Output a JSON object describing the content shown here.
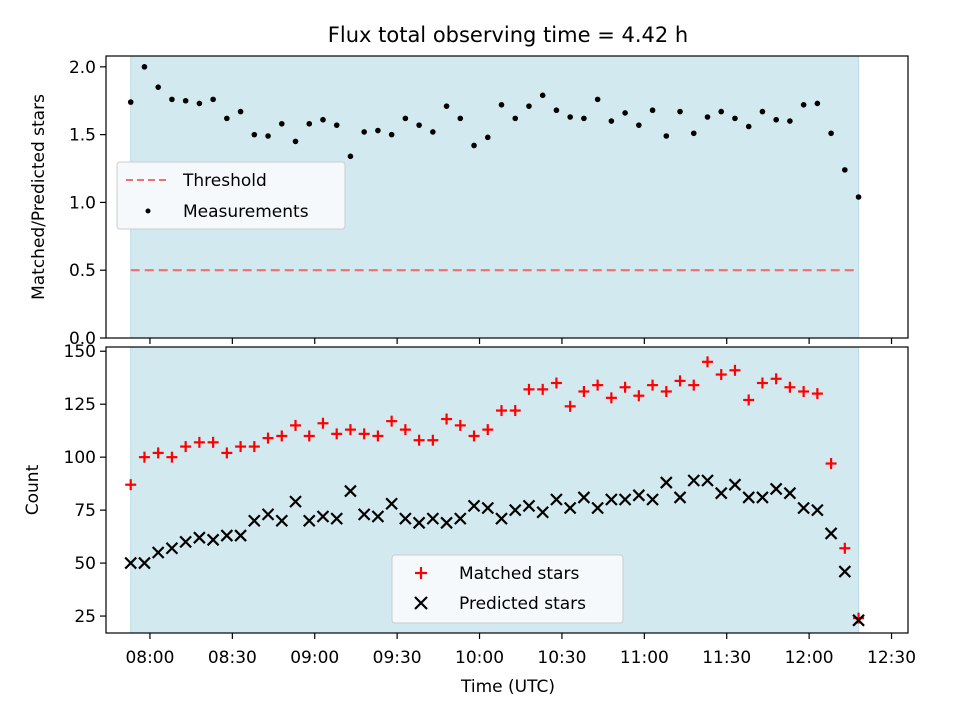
{
  "title": "Flux total observing time = 4.42 h",
  "colors": {
    "observing_span": "#d3e9f0",
    "threshold": "#f07070",
    "measurements": "#000000",
    "matched": "#ff0000",
    "predicted": "#000000"
  },
  "chart_data": [
    {
      "type": "scatter",
      "panel": "top",
      "xlabel": "",
      "ylabel": "Matched/Predicted stars",
      "ylim": [
        0,
        2.08
      ],
      "yticks": [
        "0.0",
        "0.5",
        "1.0",
        "1.5",
        "2.0"
      ],
      "xlim": [
        "07:44",
        "12:36"
      ],
      "shaded_span": [
        "07:53",
        "12:18"
      ],
      "grid": false,
      "legend": {
        "placement": "center-left",
        "entries": [
          "Threshold",
          "Measurements"
        ]
      },
      "series": [
        {
          "name": "Threshold",
          "style": "dashed-line",
          "x": [
            "07:53",
            "12:18"
          ],
          "y": [
            0.5,
            0.5
          ]
        },
        {
          "name": "Measurements",
          "style": "dots",
          "x": [
            "07:53",
            "07:58",
            "08:03",
            "08:08",
            "08:13",
            "08:18",
            "08:23",
            "08:28",
            "08:33",
            "08:38",
            "08:43",
            "08:48",
            "08:53",
            "08:58",
            "09:03",
            "09:08",
            "09:13",
            "09:18",
            "09:23",
            "09:28",
            "09:33",
            "09:38",
            "09:43",
            "09:48",
            "09:53",
            "09:58",
            "10:03",
            "10:08",
            "10:13",
            "10:18",
            "10:23",
            "10:28",
            "10:33",
            "10:38",
            "10:43",
            "10:48",
            "10:53",
            "10:58",
            "11:03",
            "11:08",
            "11:13",
            "11:18",
            "11:23",
            "11:28",
            "11:33",
            "11:38",
            "11:43",
            "11:48",
            "11:53",
            "11:58",
            "12:03",
            "12:08",
            "12:13",
            "12:18"
          ],
          "y": [
            1.74,
            2.0,
            1.85,
            1.76,
            1.75,
            1.73,
            1.76,
            1.62,
            1.67,
            1.5,
            1.49,
            1.58,
            1.45,
            1.58,
            1.61,
            1.57,
            1.34,
            1.52,
            1.53,
            1.5,
            1.62,
            1.57,
            1.52,
            1.71,
            1.62,
            1.42,
            1.48,
            1.72,
            1.62,
            1.71,
            1.79,
            1.68,
            1.63,
            1.62,
            1.76,
            1.6,
            1.66,
            1.57,
            1.68,
            1.49,
            1.67,
            1.51,
            1.63,
            1.67,
            1.62,
            1.56,
            1.67,
            1.61,
            1.6,
            1.72,
            1.73,
            1.51,
            1.24,
            1.04
          ]
        }
      ]
    },
    {
      "type": "scatter",
      "panel": "bottom",
      "xlabel": "Time (UTC)",
      "ylabel": "Count",
      "ylim": [
        17,
        152
      ],
      "yticks": [
        "25",
        "50",
        "75",
        "100",
        "125",
        "150"
      ],
      "xlim": [
        "07:44",
        "12:36"
      ],
      "xticks": [
        "08:00",
        "08:30",
        "09:00",
        "09:30",
        "10:00",
        "10:30",
        "11:00",
        "11:30",
        "12:00",
        "12:30"
      ],
      "shaded_span": [
        "07:53",
        "12:18"
      ],
      "grid": false,
      "legend": {
        "placement": "bottom-center",
        "entries": [
          "Matched stars",
          "Predicted stars"
        ]
      },
      "series": [
        {
          "name": "Matched stars",
          "marker": "plus",
          "x": [
            "07:53",
            "07:58",
            "08:03",
            "08:08",
            "08:13",
            "08:18",
            "08:23",
            "08:28",
            "08:33",
            "08:38",
            "08:43",
            "08:48",
            "08:53",
            "08:58",
            "09:03",
            "09:08",
            "09:13",
            "09:18",
            "09:23",
            "09:28",
            "09:33",
            "09:38",
            "09:43",
            "09:48",
            "09:53",
            "09:58",
            "10:03",
            "10:08",
            "10:13",
            "10:18",
            "10:23",
            "10:28",
            "10:33",
            "10:38",
            "10:43",
            "10:48",
            "10:53",
            "10:58",
            "11:03",
            "11:08",
            "11:13",
            "11:18",
            "11:23",
            "11:28",
            "11:33",
            "11:38",
            "11:43",
            "11:48",
            "11:53",
            "11:58",
            "12:03",
            "12:08",
            "12:13",
            "12:18"
          ],
          "y": [
            87,
            100,
            102,
            100,
            105,
            107,
            107,
            102,
            105,
            105,
            109,
            110,
            115,
            110,
            116,
            111,
            113,
            111,
            110,
            117,
            113,
            108,
            108,
            118,
            115,
            110,
            113,
            122,
            122,
            132,
            132,
            135,
            124,
            131,
            134,
            128,
            133,
            129,
            134,
            131,
            136,
            134,
            145,
            139,
            141,
            127,
            135,
            137,
            133,
            131,
            130,
            97,
            57,
            24
          ]
        },
        {
          "name": "Predicted stars",
          "marker": "x",
          "x": [
            "07:53",
            "07:58",
            "08:03",
            "08:08",
            "08:13",
            "08:18",
            "08:23",
            "08:28",
            "08:33",
            "08:38",
            "08:43",
            "08:48",
            "08:53",
            "08:58",
            "09:03",
            "09:08",
            "09:13",
            "09:18",
            "09:23",
            "09:28",
            "09:33",
            "09:38",
            "09:43",
            "09:48",
            "09:53",
            "09:58",
            "10:03",
            "10:08",
            "10:13",
            "10:18",
            "10:23",
            "10:28",
            "10:33",
            "10:38",
            "10:43",
            "10:48",
            "10:53",
            "10:58",
            "11:03",
            "11:08",
            "11:13",
            "11:18",
            "11:23",
            "11:28",
            "11:33",
            "11:38",
            "11:43",
            "11:48",
            "11:53",
            "11:58",
            "12:03",
            "12:08",
            "12:13",
            "12:18"
          ],
          "y": [
            50,
            50,
            55,
            57,
            60,
            62,
            61,
            63,
            63,
            70,
            73,
            70,
            79,
            70,
            72,
            71,
            84,
            73,
            72,
            78,
            71,
            69,
            71,
            69,
            71,
            77,
            76,
            71,
            75,
            77,
            74,
            80,
            76,
            81,
            76,
            80,
            80,
            82,
            80,
            88,
            81,
            89,
            89,
            83,
            87,
            81,
            81,
            85,
            83,
            76,
            75,
            64,
            46,
            23
          ]
        }
      ]
    }
  ]
}
